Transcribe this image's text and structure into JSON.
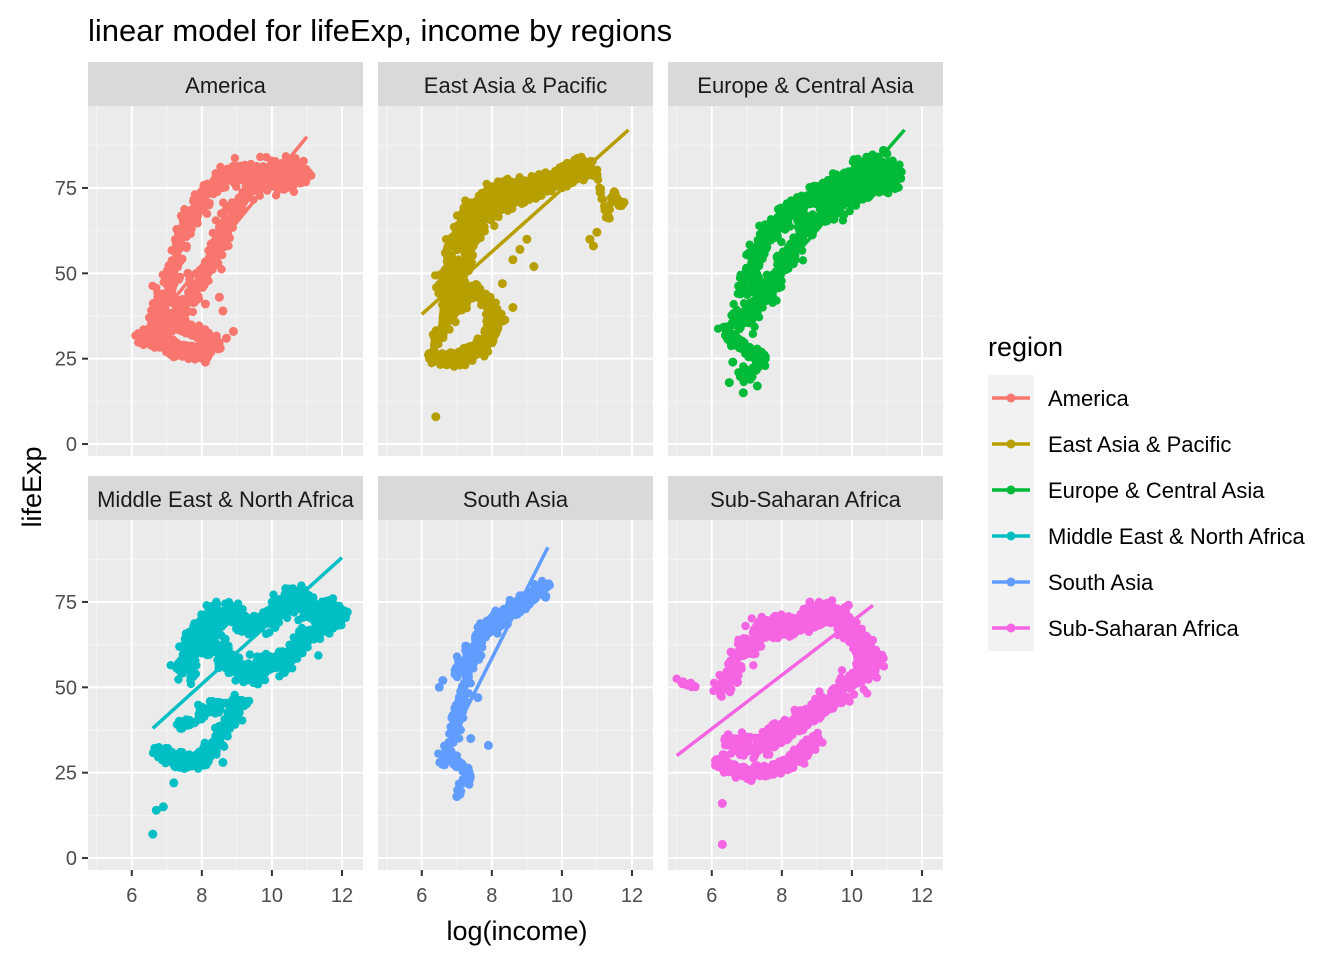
{
  "chart_data": {
    "type": "scatter",
    "title": "linear model for lifeExp, income by regions",
    "xlabel": "log(income)",
    "ylabel": "lifeExp",
    "xlim": [
      4.75,
      12.6
    ],
    "ylim": [
      -3.5,
      99
    ],
    "x_ticks": [
      6,
      8,
      10,
      12
    ],
    "y_ticks": [
      0,
      25,
      50,
      75
    ],
    "grid": true,
    "legend": {
      "title": "region",
      "position": "right"
    },
    "panels": [
      {
        "name": "America",
        "color": "#F8766D",
        "fit_line": {
          "x": [
            6.2,
            11.0
          ],
          "y": [
            30,
            90
          ]
        },
        "clouds": [
          {
            "x": [
              6.7,
              7.5,
              8.2,
              8.8,
              9.5,
              10.2,
              10.9,
              10.6,
              10.0,
              9.2,
              8.6,
              8.0,
              7.5,
              7.0,
              6.6
            ],
            "y": [
              33,
              40,
              52,
              67,
              76,
              77,
              79,
              81,
              80,
              80,
              78,
              72,
              62,
              45,
              36
            ],
            "width": 0.42,
            "height": 5.5,
            "n": 950
          },
          {
            "x": [
              6.3,
              6.8,
              7.2,
              7.6,
              8.0,
              8.4,
              7.8,
              7.2,
              6.6
            ],
            "y": [
              32,
              30,
              28,
              27,
              27,
              29,
              33,
              35,
              33
            ],
            "width": 0.35,
            "height": 3.5,
            "n": 380
          }
        ],
        "points": [
          [
            7.6,
            50
          ],
          [
            8.6,
            39
          ],
          [
            8.5,
            43
          ],
          [
            8.1,
            41
          ],
          [
            7.1,
            43
          ],
          [
            8.9,
            33
          ],
          [
            8.4,
            60
          ],
          [
            7.7,
            63
          ],
          [
            8.7,
            31
          ],
          [
            7.3,
            26
          ],
          [
            8.1,
            24
          ]
        ]
      },
      {
        "name": "East Asia & Pacific",
        "color": "#B79F00",
        "fit_line": {
          "x": [
            6.0,
            11.9
          ],
          "y": [
            38,
            92
          ]
        },
        "clouds": [
          {
            "x": [
              6.6,
              6.9,
              7.3,
              7.8,
              8.4,
              9.0,
              9.6,
              10.2,
              10.8,
              10.3,
              9.5,
              8.8,
              8.1,
              7.5,
              7.0,
              6.7
            ],
            "y": [
              45,
              58,
              66,
              72,
              75,
              75,
              76,
              79,
              82,
              80,
              76,
              73,
              70,
              62,
              48,
              38
            ],
            "width": 0.42,
            "height": 5,
            "n": 900
          },
          {
            "x": [
              6.2,
              6.6,
              7.0,
              7.4,
              7.8,
              8.2,
              7.5,
              6.8,
              6.4
            ],
            "y": [
              26,
              25,
              25,
              26,
              30,
              37,
              45,
              40,
              30
            ],
            "width": 0.38,
            "height": 4,
            "n": 450
          },
          {
            "x": [
              10.7,
              11.0,
              11.3,
              11.5,
              11.6,
              11.8
            ],
            "y": [
              82,
              78,
              66,
              74,
              70,
              71
            ],
            "width": 0.08,
            "height": 2,
            "n": 60
          }
        ],
        "points": [
          [
            6.4,
            8
          ],
          [
            8.8,
            57
          ],
          [
            8.6,
            54
          ],
          [
            9.2,
            52
          ],
          [
            8.3,
            47
          ],
          [
            8.6,
            40
          ],
          [
            9.0,
            60
          ],
          [
            10.9,
            58
          ],
          [
            11.0,
            62
          ],
          [
            10.8,
            60
          ],
          [
            8.0,
            35
          ],
          [
            7.2,
            28
          ]
        ]
      },
      {
        "name": "Europe & Central Asia",
        "color": "#00BA38",
        "fit_line": {
          "x": [
            6.4,
            11.5
          ],
          "y": [
            32,
            92
          ]
        },
        "clouds": [
          {
            "x": [
              6.6,
              7.3,
              7.9,
              8.5,
              9.2,
              9.9,
              10.6,
              11.2,
              10.8,
              10.2,
              9.6,
              9.0,
              8.4,
              7.8,
              7.3,
              6.9
            ],
            "y": [
              35,
              40,
              50,
              60,
              68,
              72,
              75,
              78,
              81,
              80,
              76,
              73,
              69,
              65,
              55,
              45
            ],
            "width": 0.45,
            "height": 6,
            "n": 1000
          },
          {
            "x": [
              6.3,
              6.7,
              7.1,
              7.5,
              7.2,
              6.8
            ],
            "y": [
              34,
              30,
              27,
              26,
              22,
              20
            ],
            "width": 0.25,
            "height": 3,
            "n": 130
          }
        ],
        "points": [
          [
            6.5,
            18
          ],
          [
            6.9,
            15
          ],
          [
            7.1,
            19
          ],
          [
            6.6,
            24
          ],
          [
            7.3,
            17
          ],
          [
            11.0,
            85
          ],
          [
            10.9,
            86
          ]
        ]
      },
      {
        "name": "Middle East & North Africa",
        "color": "#00BFC4",
        "fit_line": {
          "x": [
            6.6,
            12.0
          ],
          "y": [
            38,
            88
          ]
        },
        "clouds": [
          {
            "x": [
              7.4,
              7.8,
              8.3,
              8.8,
              9.4,
              10.0,
              10.6,
              11.2,
              11.8,
              11.2,
              10.5,
              9.8,
              9.1,
              8.5,
              7.9,
              7.5
            ],
            "y": [
              55,
              65,
              71,
              72,
              68,
              70,
              76,
              73,
              72,
              66,
              58,
              56,
              54,
              62,
              66,
              52
            ],
            "width": 0.5,
            "height": 6,
            "n": 900
          },
          {
            "x": [
              6.8,
              7.2,
              7.6,
              8.0,
              8.4,
              8.8,
              9.2,
              8.2,
              7.4
            ],
            "y": [
              31,
              29,
              28,
              29,
              34,
              40,
              46,
              44,
              38
            ],
            "width": 0.38,
            "height": 3.5,
            "n": 350
          },
          {
            "x": [
              10.8,
              11.2,
              11.6,
              12.0
            ],
            "y": [
              75,
              70,
              68,
              72
            ],
            "width": 0.3,
            "height": 3,
            "n": 80
          }
        ],
        "points": [
          [
            6.6,
            7
          ],
          [
            6.7,
            14
          ],
          [
            6.9,
            15
          ],
          [
            7.2,
            22
          ],
          [
            7.5,
            28
          ],
          [
            8.6,
            33
          ],
          [
            8.6,
            28
          ],
          [
            9.4,
            55
          ],
          [
            9.6,
            51
          ],
          [
            11.3,
            70
          ]
        ]
      },
      {
        "name": "South Asia",
        "color": "#619CFF",
        "fit_line": {
          "x": [
            6.5,
            9.6
          ],
          "y": [
            28,
            91
          ]
        },
        "clouds": [
          {
            "x": [
              6.6,
              6.9,
              7.0,
              7.2,
              7.4,
              7.8,
              8.4,
              9.0,
              9.6,
              9.0,
              8.4,
              7.8,
              7.4,
              7.0
            ],
            "y": [
              28,
              35,
              42,
              50,
              58,
              66,
              70,
              75,
              80,
              76,
              72,
              68,
              62,
              55
            ],
            "width": 0.28,
            "height": 4,
            "n": 420
          },
          {
            "x": [
              6.8,
              7.0,
              7.2,
              7.4,
              7.2,
              7.0
            ],
            "y": [
              30,
              28,
              26,
              24,
              22,
              20
            ],
            "width": 0.15,
            "height": 2.5,
            "n": 90
          }
        ],
        "points": [
          [
            7.0,
            18
          ],
          [
            7.9,
            33
          ],
          [
            7.6,
            47
          ],
          [
            6.5,
            50
          ],
          [
            6.6,
            52
          ],
          [
            7.4,
            35
          ],
          [
            9.5,
            80
          ],
          [
            9.5,
            79
          ]
        ]
      },
      {
        "name": "Sub-Saharan Africa",
        "color": "#F564E3",
        "fit_line": {
          "x": [
            5.0,
            10.6
          ],
          "y": [
            30,
            74
          ]
        },
        "clouds": [
          {
            "x": [
              6.3,
              6.8,
              7.3,
              7.8,
              8.3,
              8.8,
              9.3,
              9.8,
              10.3,
              10.6,
              10.0,
              9.4,
              8.8,
              8.2,
              7.6,
              7.0,
              6.5
            ],
            "y": [
              48,
              60,
              66,
              68,
              68,
              70,
              72,
              70,
              62,
              58,
              52,
              46,
              42,
              38,
              34,
              32,
              35
            ],
            "width": 0.5,
            "height": 5.5,
            "n": 1000
          },
          {
            "x": [
              6.2,
              6.6,
              7.0,
              7.4,
              7.8,
              8.2,
              8.6,
              9.0
            ],
            "y": [
              28,
              26,
              25,
              25,
              26,
              28,
              31,
              35
            ],
            "width": 0.4,
            "height": 3,
            "n": 380
          },
          {
            "x": [
              5.0,
              5.3,
              5.6
            ],
            "y": [
              52,
              51,
              50
            ],
            "width": 0.1,
            "height": 1,
            "n": 20
          }
        ],
        "points": [
          [
            6.3,
            4
          ],
          [
            6.3,
            16
          ],
          [
            10.5,
            56
          ],
          [
            10.6,
            57
          ],
          [
            8.8,
            75
          ],
          [
            9.9,
            74
          ],
          [
            6.4,
            30
          ]
        ]
      }
    ]
  }
}
